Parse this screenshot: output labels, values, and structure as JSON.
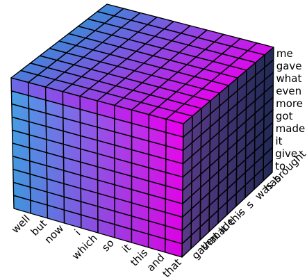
{
  "chart_data": {
    "type": "heatmap",
    "title": "",
    "subtitle": "",
    "front_axis_labels": [
      "well",
      "but",
      "now",
      "i",
      "which",
      "so",
      "it",
      "this",
      "and",
      "that"
    ],
    "side_axis_labels": [
      "gave",
      "that",
      "made",
      "it",
      "this",
      "-",
      "s",
      "was",
      "has",
      "brought"
    ],
    "vertical_axis_labels": [
      "to",
      "give",
      "it",
      "made",
      "got",
      "more",
      "even",
      "what",
      "gave",
      "me"
    ],
    "grid": true,
    "colors": {
      "front_low": "#3d9be6",
      "front_high": "#e800ee",
      "front_top_row_low": "#6a6ae6",
      "top_back_left": "#3d88d8",
      "top_front_right": "#e800ee",
      "top_back_right": "#c35fe8",
      "side_dark": "#222a55",
      "side_light": "#5a3a8a",
      "grid_line": "#000000"
    }
  }
}
